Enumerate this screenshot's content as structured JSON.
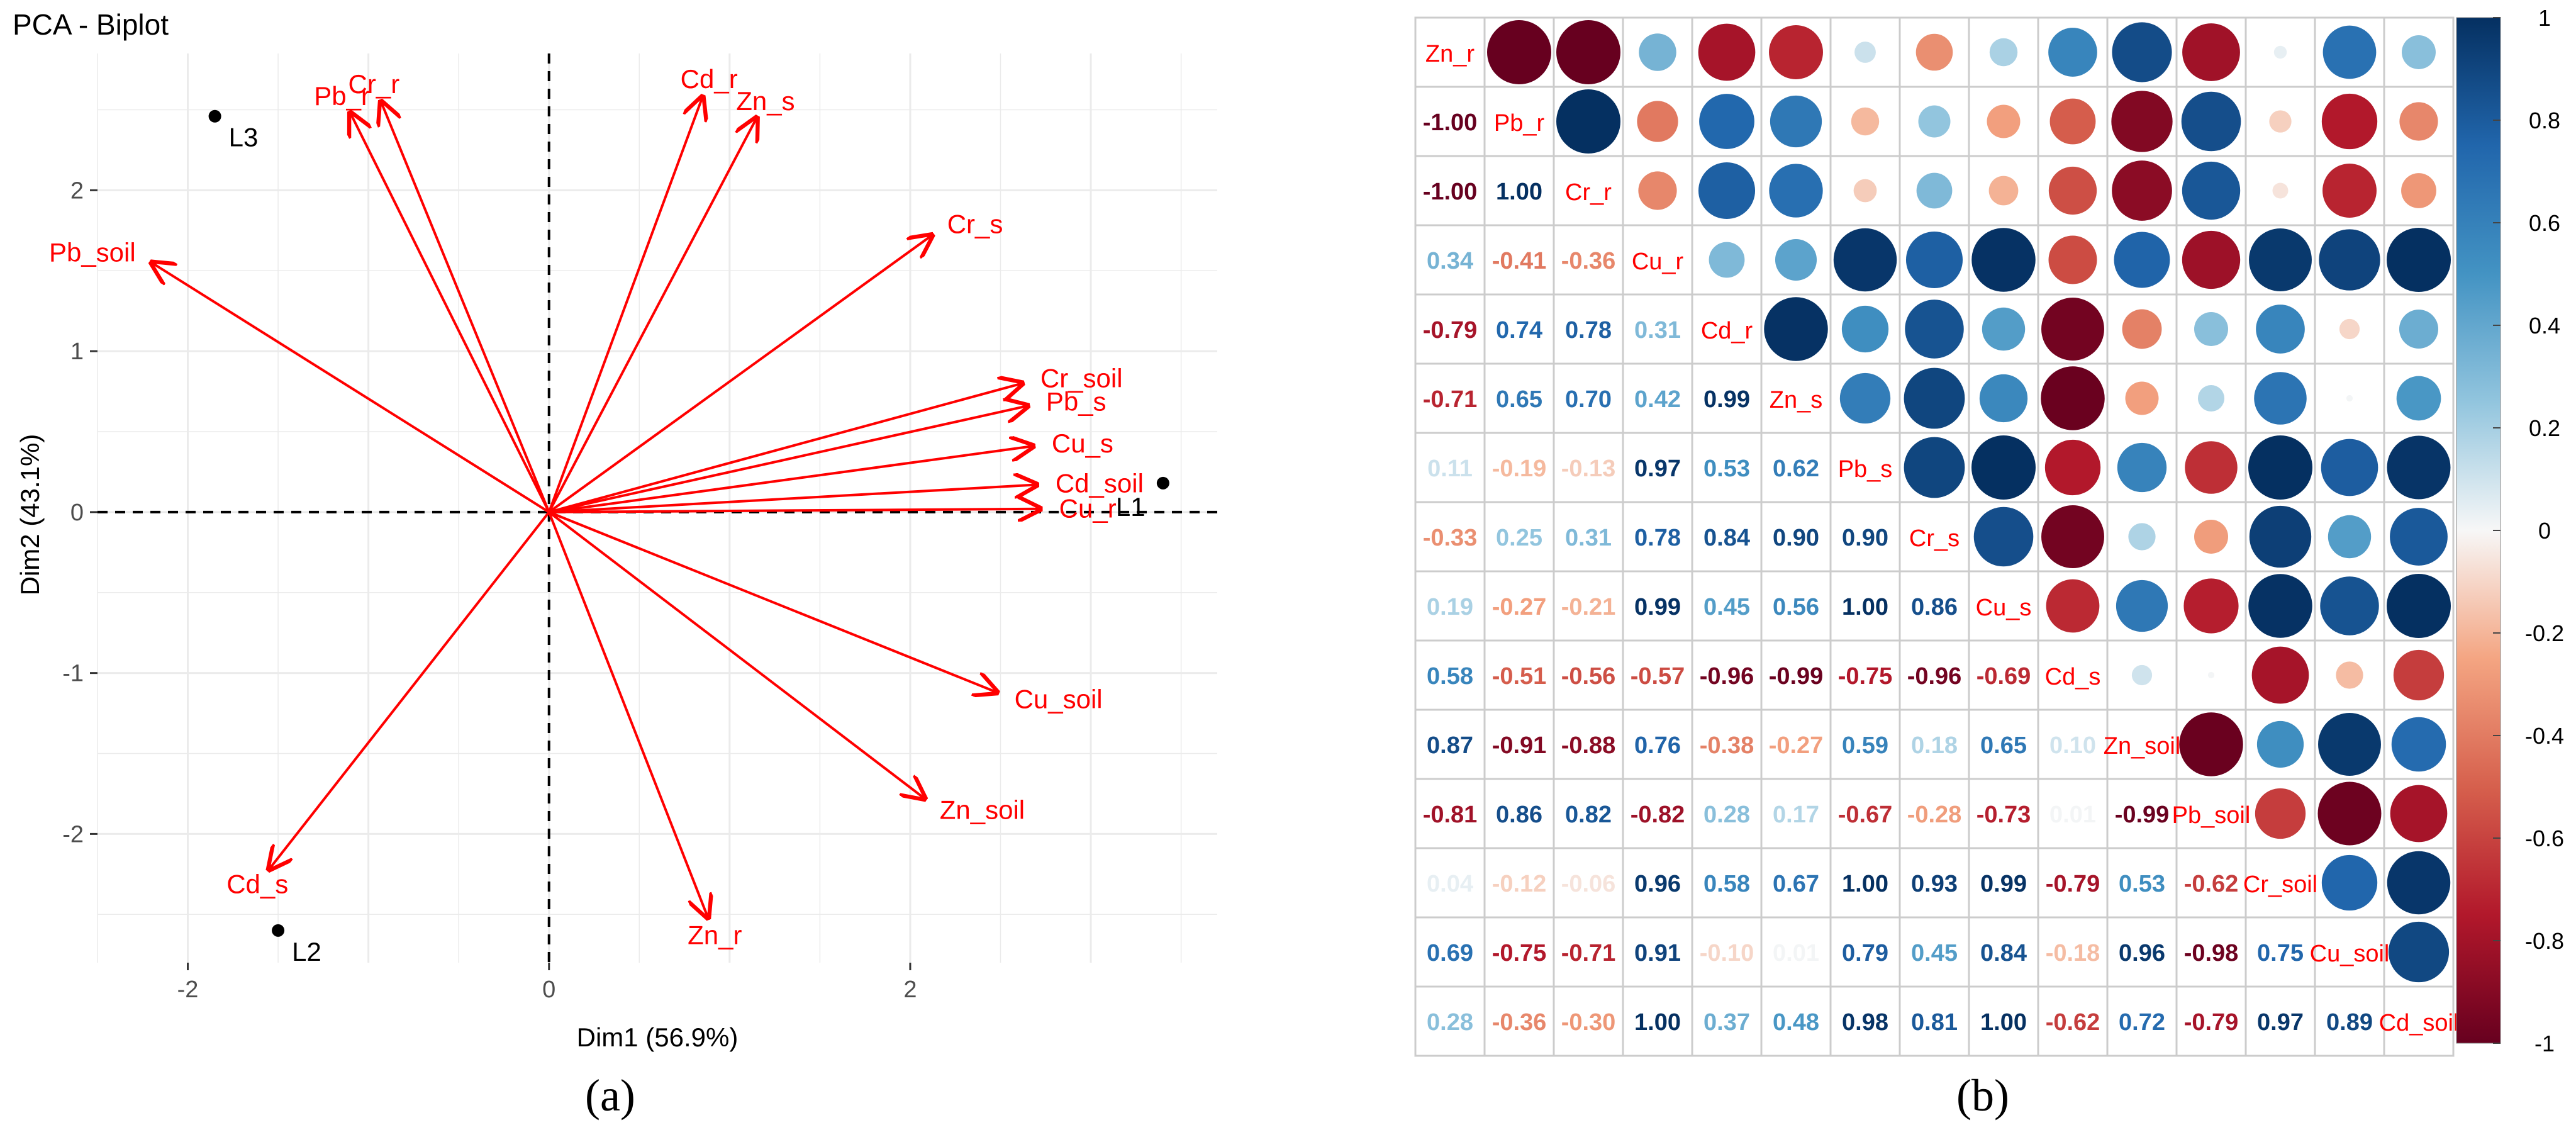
{
  "panel_a": {
    "caption": "(a)",
    "chart_data": {
      "type": "scatter",
      "title": "PCA - Biplot",
      "xlabel": "Dim1 (56.9%)",
      "ylabel": "Dim2 (43.1%)",
      "xlim": [
        -2.5,
        3.7
      ],
      "ylim": [
        -2.8,
        2.85
      ],
      "xticks": [
        -2,
        0,
        2
      ],
      "yticks": [
        -2,
        -1,
        0,
        1,
        2
      ],
      "tick_labels_x": [
        "-2",
        "0",
        "2"
      ],
      "tick_labels_y": [
        "-2",
        "-1",
        "0",
        "1",
        "2"
      ],
      "points": [
        {
          "label": "L3",
          "x": -1.85,
          "y": 2.46
        },
        {
          "label": "L2",
          "x": -1.5,
          "y": -2.6
        },
        {
          "label": "L1",
          "x": 3.4,
          "y": 0.18
        }
      ],
      "arrows": [
        {
          "label": "Cr_r",
          "x": -0.93,
          "y": 2.55
        },
        {
          "label": "Pb_r",
          "x": -1.1,
          "y": 2.48
        },
        {
          "label": "Cd_r",
          "x": 0.85,
          "y": 2.58
        },
        {
          "label": "Zn_s",
          "x": 1.15,
          "y": 2.45
        },
        {
          "label": "Pb_soil",
          "x": -2.2,
          "y": 1.55
        },
        {
          "label": "Cr_s",
          "x": 2.12,
          "y": 1.72
        },
        {
          "label": "Cr_soil",
          "x": 2.62,
          "y": 0.8
        },
        {
          "label": "Pb_s",
          "x": 2.65,
          "y": 0.66
        },
        {
          "label": "Cu_s",
          "x": 2.68,
          "y": 0.41
        },
        {
          "label": "Cd_soil",
          "x": 2.7,
          "y": 0.17
        },
        {
          "label": "Cu_r",
          "x": 2.72,
          "y": 0.02
        },
        {
          "label": "Cu_soil",
          "x": 2.48,
          "y": -1.12
        },
        {
          "label": "Zn_soil",
          "x": 2.08,
          "y": -1.78
        },
        {
          "label": "Zn_r",
          "x": 0.88,
          "y": -2.52
        },
        {
          "label": "Cd_s",
          "x": -1.55,
          "y": -2.22
        }
      ],
      "colors": {
        "arrow": "#ff0000",
        "point": "#000000",
        "grid": "#ebebeb"
      }
    }
  },
  "panel_b": {
    "caption": "(b)",
    "chart_data": {
      "type": "heatmap",
      "variables": [
        "Zn_r",
        "Pb_r",
        "Cr_r",
        "Cu_r",
        "Cd_r",
        "Zn_s",
        "Pb_s",
        "Cr_s",
        "Cu_s",
        "Cd_s",
        "Zn_soil",
        "Pb_soil",
        "Cr_soil",
        "Cu_soil",
        "Cd_soil"
      ],
      "matrix": [
        [
          1,
          -1.0,
          -1.0,
          0.34,
          -0.79,
          -0.71,
          0.11,
          -0.33,
          0.19,
          0.58,
          0.87,
          -0.81,
          0.04,
          0.69,
          0.28
        ],
        [
          -1.0,
          1,
          1.0,
          -0.41,
          0.74,
          0.65,
          -0.19,
          0.25,
          -0.27,
          -0.51,
          -0.91,
          0.86,
          -0.12,
          -0.75,
          -0.36
        ],
        [
          -1.0,
          1.0,
          1,
          -0.36,
          0.78,
          0.7,
          -0.13,
          0.31,
          -0.21,
          -0.56,
          -0.88,
          0.82,
          -0.06,
          -0.71,
          -0.3
        ],
        [
          0.34,
          -0.41,
          -0.36,
          1,
          0.31,
          0.42,
          0.97,
          0.78,
          0.99,
          -0.57,
          0.76,
          -0.82,
          0.96,
          0.91,
          1.0
        ],
        [
          -0.79,
          0.74,
          0.78,
          0.31,
          1,
          0.99,
          0.53,
          0.84,
          0.45,
          -0.96,
          -0.38,
          0.28,
          0.58,
          -0.1,
          0.37
        ],
        [
          -0.71,
          0.65,
          0.7,
          0.42,
          0.99,
          1,
          0.62,
          0.9,
          0.56,
          -0.99,
          -0.27,
          0.17,
          0.67,
          0.01,
          0.48
        ],
        [
          0.11,
          -0.19,
          -0.13,
          0.97,
          0.53,
          0.62,
          1,
          0.9,
          1.0,
          -0.75,
          0.59,
          -0.67,
          1.0,
          0.79,
          0.98
        ],
        [
          -0.33,
          0.25,
          0.31,
          0.78,
          0.84,
          0.9,
          0.9,
          1,
          0.86,
          -0.96,
          0.18,
          -0.28,
          0.93,
          0.45,
          0.81
        ],
        [
          0.19,
          -0.27,
          -0.21,
          0.99,
          0.45,
          0.56,
          1.0,
          0.86,
          1,
          -0.69,
          0.65,
          -0.73,
          0.99,
          0.84,
          1.0
        ],
        [
          0.58,
          -0.51,
          -0.56,
          -0.57,
          -0.96,
          -0.99,
          -0.75,
          -0.96,
          -0.69,
          1,
          0.1,
          0.01,
          -0.79,
          -0.18,
          -0.62
        ],
        [
          0.87,
          -0.91,
          -0.88,
          0.76,
          -0.38,
          -0.27,
          0.59,
          0.18,
          0.65,
          0.1,
          1,
          -0.99,
          0.53,
          0.96,
          0.72
        ],
        [
          -0.81,
          0.86,
          0.82,
          -0.82,
          0.28,
          0.17,
          -0.67,
          -0.28,
          -0.73,
          0.01,
          -0.99,
          1,
          -0.62,
          -0.98,
          -0.79
        ],
        [
          0.04,
          -0.12,
          -0.06,
          0.96,
          0.58,
          0.67,
          1.0,
          0.93,
          0.99,
          -0.79,
          0.53,
          -0.62,
          1,
          0.75,
          0.97
        ],
        [
          0.69,
          -0.75,
          -0.71,
          0.91,
          -0.1,
          0.01,
          0.79,
          0.45,
          0.84,
          -0.18,
          0.96,
          -0.98,
          0.75,
          1,
          0.89
        ],
        [
          0.28,
          -0.36,
          -0.3,
          1.0,
          0.37,
          0.48,
          0.98,
          0.81,
          1.0,
          -0.62,
          0.72,
          -0.79,
          0.97,
          0.89,
          1
        ]
      ],
      "upper": "circle",
      "lower": "number",
      "diagonal": "variable names",
      "colorbar_ticks": [
        "1",
        "0.8",
        "0.6",
        "0.4",
        "0.2",
        "0",
        "-0.2",
        "-0.4",
        "-0.6",
        "-0.8",
        "-1"
      ],
      "colorbar_values": [
        1,
        0.8,
        0.6,
        0.4,
        0.2,
        0,
        -0.2,
        -0.4,
        -0.6,
        -0.8,
        -1
      ],
      "colors": {
        "positive": "#053061",
        "mid": "#f7f7f7",
        "negative": "#67001f",
        "label": "#ff0000",
        "border": "#cccccc"
      }
    }
  }
}
